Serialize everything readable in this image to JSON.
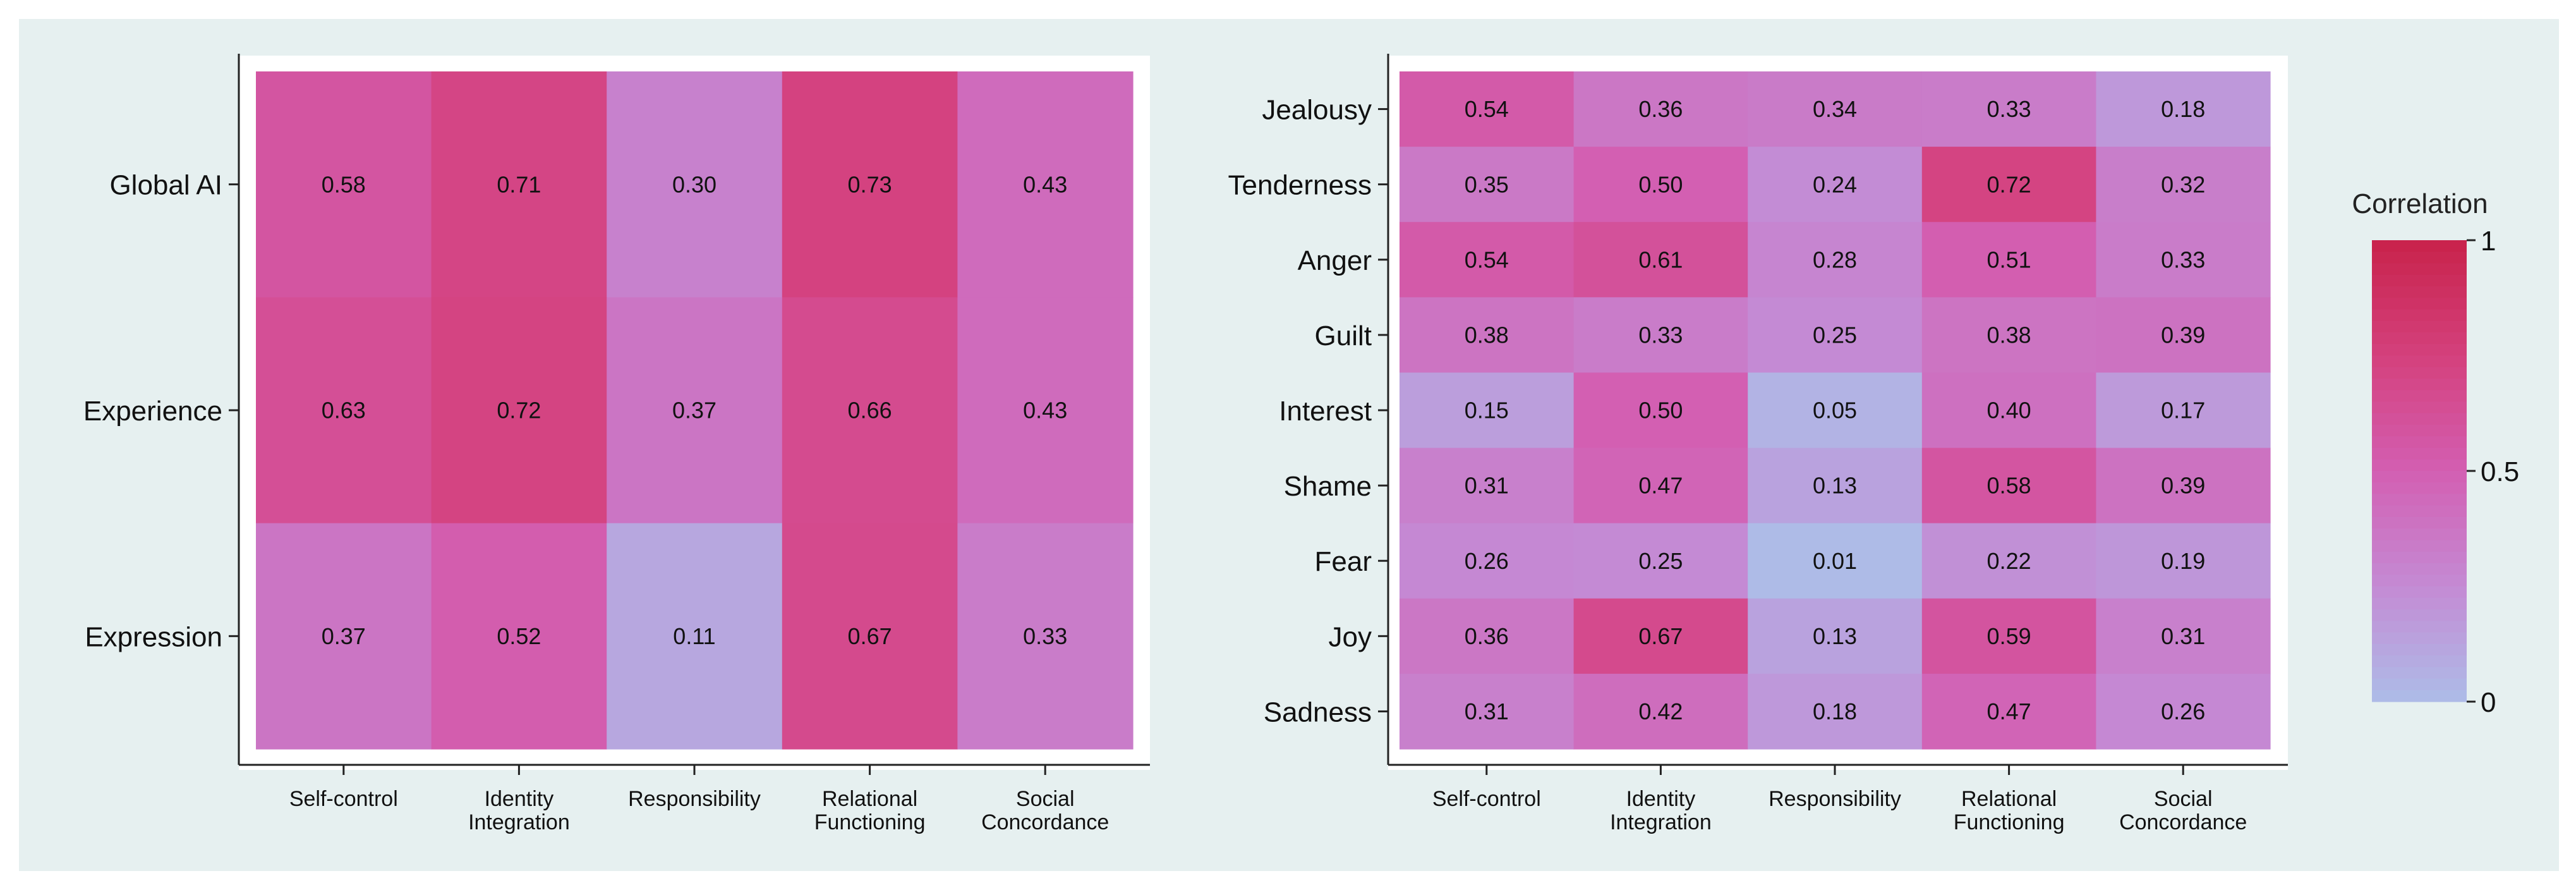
{
  "chart_data": [
    {
      "type": "heatmap",
      "id": "left",
      "rows": [
        "Global AI",
        "Experience",
        "Expression"
      ],
      "columns": [
        [
          "Self-control"
        ],
        [
          "Identity",
          "Integration"
        ],
        [
          "Responsibility"
        ],
        [
          "Relational",
          "Functioning"
        ],
        [
          "Social",
          "Concordance"
        ]
      ],
      "values": [
        [
          0.58,
          0.71,
          0.3,
          0.73,
          0.43
        ],
        [
          0.63,
          0.72,
          0.37,
          0.66,
          0.43
        ],
        [
          0.37,
          0.52,
          0.11,
          0.67,
          0.33
        ]
      ],
      "labels": [
        [
          "0.58",
          "0.71",
          "0.30",
          "0.73",
          "0.43"
        ],
        [
          "0.63",
          "0.72",
          "0.37",
          "0.66",
          "0.43"
        ],
        [
          "0.37",
          "0.52",
          "0.11",
          "0.67",
          "0.33"
        ]
      ]
    },
    {
      "type": "heatmap",
      "id": "right",
      "rows": [
        "Jealousy",
        "Tenderness",
        "Anger",
        "Guilt",
        "Interest",
        "Shame",
        "Fear",
        "Joy",
        "Sadness"
      ],
      "columns": [
        [
          "Self-control"
        ],
        [
          "Identity",
          "Integration"
        ],
        [
          "Responsibility"
        ],
        [
          "Relational",
          "Functioning"
        ],
        [
          "Social",
          "Concordance"
        ]
      ],
      "values": [
        [
          0.54,
          0.36,
          0.34,
          0.33,
          0.18
        ],
        [
          0.35,
          0.5,
          0.24,
          0.72,
          0.32
        ],
        [
          0.54,
          0.61,
          0.28,
          0.51,
          0.33
        ],
        [
          0.38,
          0.33,
          0.25,
          0.38,
          0.39
        ],
        [
          0.15,
          0.5,
          0.05,
          0.4,
          0.17
        ],
        [
          0.31,
          0.47,
          0.13,
          0.58,
          0.39
        ],
        [
          0.26,
          0.25,
          0.01,
          0.22,
          0.19
        ],
        [
          0.36,
          0.67,
          0.13,
          0.59,
          0.31
        ],
        [
          0.31,
          0.42,
          0.18,
          0.47,
          0.26
        ]
      ],
      "labels": [
        [
          "0.54",
          "0.36",
          "0.34",
          "0.33",
          "0.18"
        ],
        [
          "0.35",
          "0.50",
          "0.24",
          "0.72",
          "0.32"
        ],
        [
          "0.54",
          "0.61",
          "0.28",
          "0.51",
          "0.33"
        ],
        [
          "0.38",
          "0.33",
          "0.25",
          "0.38",
          "0.39"
        ],
        [
          "0.15",
          "0.50",
          "0.05",
          "0.40",
          "0.17"
        ],
        [
          "0.31",
          "0.47",
          "0.13",
          "0.58",
          "0.39"
        ],
        [
          "0.26",
          "0.25",
          "0.01",
          "0.22",
          "0.19"
        ],
        [
          "0.36",
          "0.67",
          "0.13",
          "0.59",
          "0.31"
        ],
        [
          "0.31",
          "0.42",
          "0.18",
          "0.47",
          "0.26"
        ]
      ]
    }
  ],
  "legend": {
    "title": "Correlation",
    "range": [
      0,
      1
    ],
    "tick_labels": [
      "1",
      "0.5",
      "0"
    ],
    "colors": [
      "#adbde8",
      "#c48ad4",
      "#d35fb2",
      "#d4407c",
      "#c8224a"
    ]
  },
  "colors": {
    "background": "#e6f0f0",
    "panel": "#ffffff",
    "axis": "#222222"
  }
}
